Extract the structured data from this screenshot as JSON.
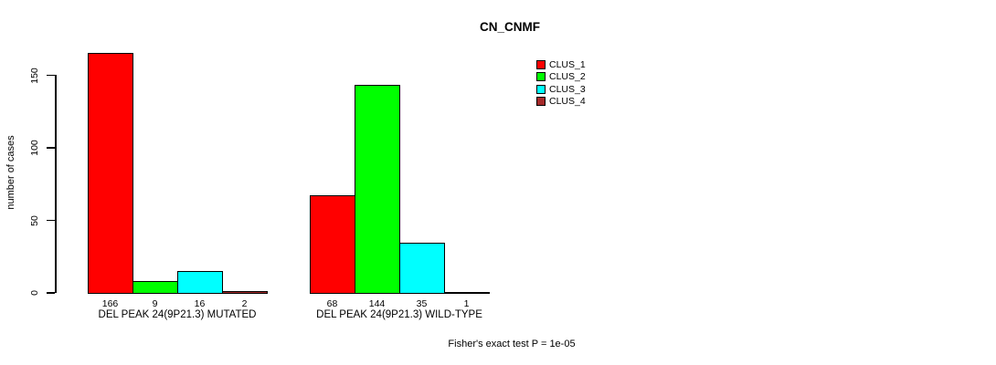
{
  "title": "CN_CNMF",
  "y_axis_label": "number of cases",
  "annotation": "Fisher's exact test P = 1e-05",
  "chart_data": {
    "type": "bar",
    "title": "CN_CNMF",
    "ylabel": "number of cases",
    "xlabel": "",
    "ylim": [
      0,
      166
    ],
    "yticks": [
      0,
      50,
      100,
      150
    ],
    "grid": false,
    "legend_position": "top-right",
    "bar_value_labels_shown": true,
    "categories": [
      "DEL PEAK 24(9P21.3) MUTATED",
      "DEL PEAK 24(9P21.3) WILD-TYPE"
    ],
    "series": [
      {
        "name": "CLUS_1",
        "color": "#FF0000",
        "values": [
          166,
          68
        ]
      },
      {
        "name": "CLUS_2",
        "color": "#00FF00",
        "values": [
          9,
          144
        ]
      },
      {
        "name": "CLUS_3",
        "color": "#00FFFF",
        "values": [
          16,
          35
        ]
      },
      {
        "name": "CLUS_4",
        "color": "#A52A2A",
        "values": [
          2,
          1
        ]
      }
    ],
    "annotation": "Fisher's exact test P = 1e-05"
  }
}
